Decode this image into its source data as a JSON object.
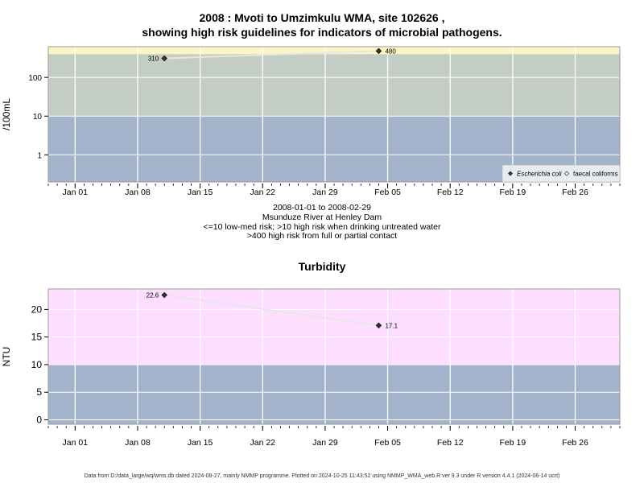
{
  "header": {
    "title_line1": "2008 : Mvoti to Umzimkulu WMA, site 102626 ,",
    "title_line2": "showing high risk guidelines for indicators of microbial pathogens."
  },
  "subtitle": {
    "date_range": "2008-01-01 to 2008-02-29",
    "site_name": "Msunduze River at Henley Dam",
    "risk_note_1": "<=10 low-med risk; >10 high risk when drinking untreated water",
    "risk_note_2": ">400 high risk from full or partial contact"
  },
  "footer": {
    "text": "Data from D:/data_large/wq/wms.db dated 2024-08-27, mainly NMMP programme. Plotted on 2024-10-25 11:43:52 using NMMP_WMA_web.R ver 9.3 under R version 4.4.1 (2024-06-14 ucrt)"
  },
  "colors": {
    "band_low": "#a3b3cb",
    "band_mid": "#c4cdc3",
    "band_high": "#fcf6c4",
    "band_turbidity_high": "#fddeff",
    "grid": "#ffffff",
    "connector": "#e6e6e6",
    "marker": "#333333"
  },
  "chart_data": [
    {
      "type": "scatter",
      "title": "",
      "xlabel": "",
      "ylabel": "/100mL",
      "yscale": "log",
      "ylim": [
        0.2,
        620
      ],
      "yticks": [
        1,
        10,
        100
      ],
      "ytick_labels": [
        "1",
        "10",
        "100"
      ],
      "x_start": "2007-12-29",
      "x_end": "2008-03-02",
      "xtick_labels": [
        "Jan 01",
        "Jan 08",
        "Jan 15",
        "Jan 22",
        "Jan 29",
        "Feb 05",
        "Feb 12",
        "Feb 19",
        "Feb 26"
      ],
      "xtick_dates": [
        "2008-01-01",
        "2008-01-08",
        "2008-01-15",
        "2008-01-22",
        "2008-01-29",
        "2008-02-05",
        "2008-02-12",
        "2008-02-19",
        "2008-02-26"
      ],
      "bands": [
        {
          "from": 0.2,
          "to": 10,
          "color": "#a3b3cb"
        },
        {
          "from": 10,
          "to": 400,
          "color": "#c4cdc3"
        },
        {
          "from": 400,
          "to": 620,
          "color": "#fcf6c4"
        }
      ],
      "grid": true,
      "legend_position": "bottom-right",
      "series": [
        {
          "name": "Escherichia coli",
          "marker": "filled-diamond",
          "points": [
            {
              "x": "2008-01-11",
              "y": 310,
              "label": "310"
            },
            {
              "x": "2008-02-04",
              "y": 480,
              "label": "480"
            }
          ]
        },
        {
          "name": "faecal coliforms",
          "marker": "open-diamond",
          "points": []
        }
      ]
    },
    {
      "type": "scatter",
      "title": "Turbidity",
      "xlabel": "",
      "ylabel": "NTU",
      "yscale": "linear",
      "ylim": [
        -0.8,
        23.7
      ],
      "yticks": [
        0,
        5,
        10,
        15,
        20
      ],
      "ytick_labels": [
        "0",
        "5",
        "10",
        "15",
        "20"
      ],
      "x_start": "2007-12-29",
      "x_end": "2008-03-02",
      "xtick_labels": [
        "Jan 01",
        "Jan 08",
        "Jan 15",
        "Jan 22",
        "Jan 29",
        "Feb 05",
        "Feb 12",
        "Feb 19",
        "Feb 26"
      ],
      "xtick_dates": [
        "2008-01-01",
        "2008-01-08",
        "2008-01-15",
        "2008-01-22",
        "2008-01-29",
        "2008-02-05",
        "2008-02-12",
        "2008-02-19",
        "2008-02-26"
      ],
      "bands": [
        {
          "from": -0.8,
          "to": 10,
          "color": "#a3b3cb"
        },
        {
          "from": 10,
          "to": 23.7,
          "color": "#fddeff"
        }
      ],
      "grid": true,
      "series": [
        {
          "marker": "filled-diamond",
          "points": [
            {
              "x": "2008-01-11",
              "y": 22.6,
              "label": "22.6"
            },
            {
              "x": "2008-02-04",
              "y": 17.1,
              "label": "17.1"
            }
          ]
        }
      ]
    }
  ]
}
